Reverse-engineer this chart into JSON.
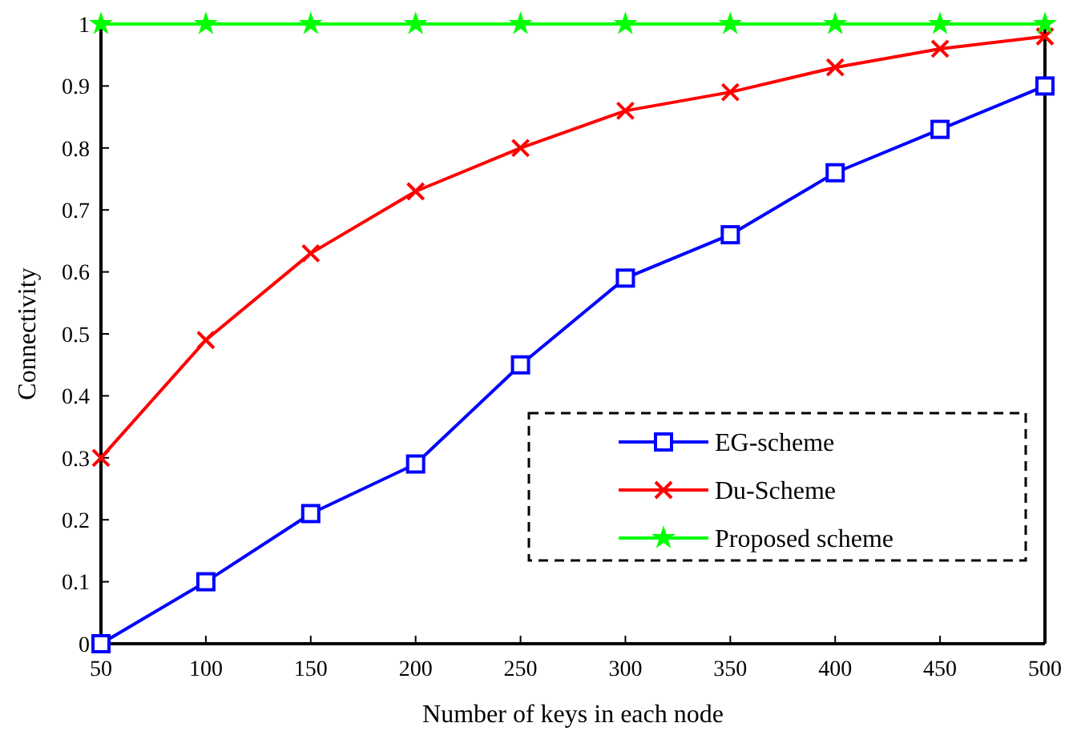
{
  "chart_data": {
    "type": "line",
    "xlabel": "Number of keys in each  node",
    "ylabel": "Connectivity",
    "x": [
      50,
      100,
      150,
      200,
      250,
      300,
      350,
      400,
      450,
      500
    ],
    "xlim": [
      50,
      500
    ],
    "xticks": [
      50,
      100,
      150,
      200,
      250,
      300,
      350,
      400,
      450,
      500
    ],
    "ylim": [
      0,
      1
    ],
    "yticks": [
      0,
      0.1,
      0.2,
      0.3,
      0.4,
      0.5,
      0.6,
      0.7,
      0.8,
      0.9,
      1
    ],
    "grid": false,
    "legend": "bottom right",
    "series": [
      {
        "name": "EG-scheme",
        "color": "#0000ff",
        "marker": "square",
        "values": [
          0,
          0.1,
          0.21,
          0.29,
          0.45,
          0.59,
          0.66,
          0.76,
          0.83,
          0.9
        ]
      },
      {
        "name": "Du-Scheme",
        "color": "#ff0000",
        "marker": "cross",
        "values": [
          0.3,
          0.49,
          0.63,
          0.73,
          0.8,
          0.86,
          0.89,
          0.93,
          0.96,
          0.98
        ]
      },
      {
        "name": "Proposed scheme",
        "color": "#00ff00",
        "marker": "star",
        "values": [
          1,
          1,
          1,
          1,
          1,
          1,
          1,
          1,
          1,
          1
        ]
      }
    ]
  }
}
